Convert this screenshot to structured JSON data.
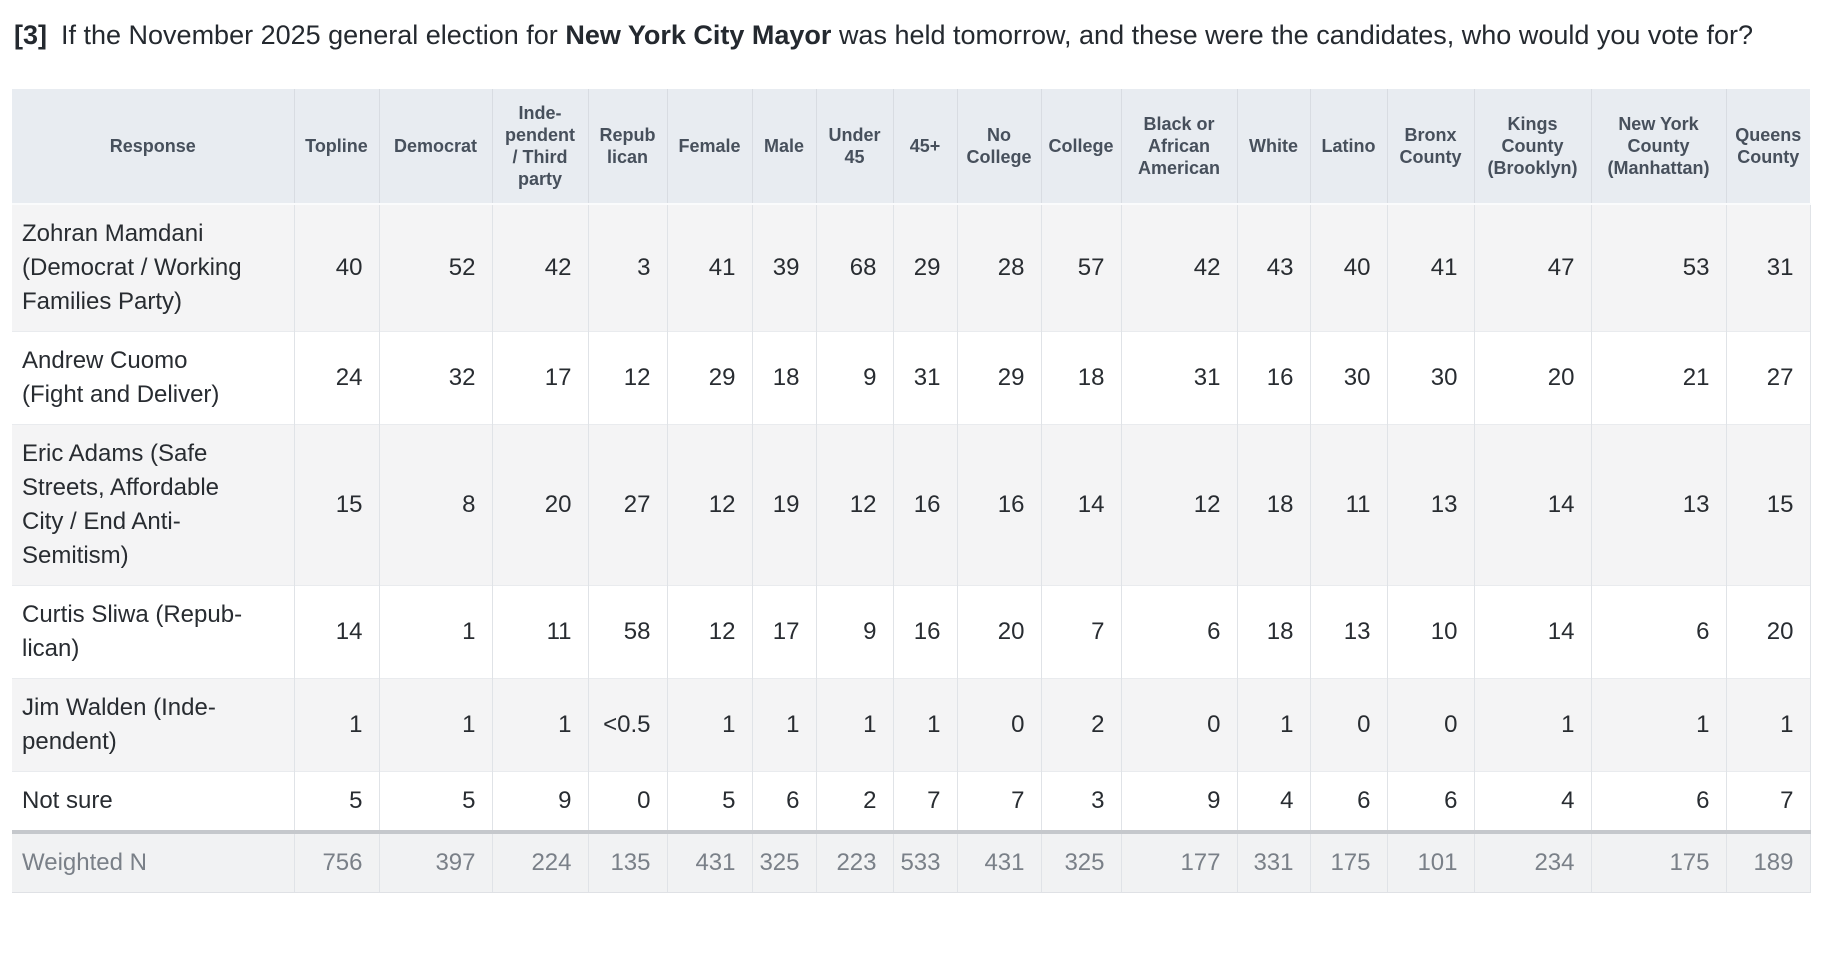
{
  "question": {
    "number": "[3]",
    "text_before_bold": "If the November 2025 general election for",
    "bold_text": "New York City Mayor",
    "text_after_bold": "was held tomorrow, and these were the candidates, who would you vote for?"
  },
  "table": {
    "column_labels_display": [
      "Response",
      "Topline",
      "Democrat",
      "Inde-\npendent\n/ Third\nparty",
      "Repub\nlican",
      "Female",
      "Male",
      "Under\n45",
      "45+",
      "No\nCollege",
      "College",
      "Black or\nAfrican\nAmerican",
      "White",
      "Latino",
      "Bronx\nCounty",
      "Kings\nCounty\n(Brooklyn)",
      "New York\nCounty\n(Manhattan)",
      "Queens\nCounty"
    ],
    "row_labels_display": [
      "Zohran Mamdani\n(Democrat / Working\nFamilies Party)",
      "Andrew Cuomo\n(Fight and Deliver)",
      "Eric Adams (Safe\nStreets, Affordable\nCity / End Anti-\nSemitism)",
      "Curtis Sliwa (Repub-\nlican)",
      "Jim Walden (Inde-\npendent)",
      "Not sure"
    ],
    "footer_label": "Weighted N"
  },
  "chart_data": {
    "type": "table",
    "title": "[3] If the November 2025 general election for New York City Mayor was held tomorrow, and these were the candidates, who would you vote for?",
    "units": "percent",
    "columns": [
      "Response",
      "Topline",
      "Democrat",
      "Independent / Third party",
      "Republican",
      "Female",
      "Male",
      "Under 45",
      "45+",
      "No College",
      "College",
      "Black or African American",
      "White",
      "Latino",
      "Bronx County",
      "Kings County (Brooklyn)",
      "New York County (Manhattan)",
      "Queens County"
    ],
    "rows": [
      {
        "label": "Zohran Mamdani (Democrat / Working Families Party)",
        "values": [
          40,
          52,
          42,
          3,
          41,
          39,
          68,
          29,
          28,
          57,
          42,
          43,
          40,
          41,
          47,
          53,
          31
        ]
      },
      {
        "label": "Andrew Cuomo (Fight and Deliver)",
        "values": [
          24,
          32,
          17,
          12,
          29,
          18,
          9,
          31,
          29,
          18,
          31,
          16,
          30,
          30,
          20,
          21,
          27
        ]
      },
      {
        "label": "Eric Adams (Safe Streets, Affordable City / End Anti-Semitism)",
        "values": [
          15,
          8,
          20,
          27,
          12,
          19,
          12,
          16,
          16,
          14,
          12,
          18,
          11,
          13,
          14,
          13,
          15
        ]
      },
      {
        "label": "Curtis Sliwa (Republican)",
        "values": [
          14,
          1,
          11,
          58,
          12,
          17,
          9,
          16,
          20,
          7,
          6,
          18,
          13,
          10,
          14,
          6,
          20
        ]
      },
      {
        "label": "Jim Walden (Independent)",
        "values": [
          1,
          1,
          1,
          "<0.5",
          1,
          1,
          1,
          1,
          0,
          2,
          0,
          1,
          0,
          0,
          1,
          1,
          1
        ]
      },
      {
        "label": "Not sure",
        "values": [
          5,
          5,
          9,
          0,
          5,
          6,
          2,
          7,
          7,
          3,
          9,
          4,
          6,
          6,
          4,
          6,
          7
        ]
      }
    ],
    "footer": {
      "label": "Weighted N",
      "values": [
        756,
        397,
        224,
        135,
        431,
        325,
        223,
        533,
        431,
        325,
        177,
        331,
        175,
        101,
        234,
        175,
        189
      ]
    },
    "colors": {
      "header_background": "#e8ecf1",
      "stripe_background": "#f4f4f5",
      "weighted_row_background": "#f1f2f3",
      "weighted_row_text": "#7a8088",
      "weighted_row_top_border": "#c5c8cc",
      "body_text": "#282c31",
      "header_text": "#47505c"
    }
  }
}
